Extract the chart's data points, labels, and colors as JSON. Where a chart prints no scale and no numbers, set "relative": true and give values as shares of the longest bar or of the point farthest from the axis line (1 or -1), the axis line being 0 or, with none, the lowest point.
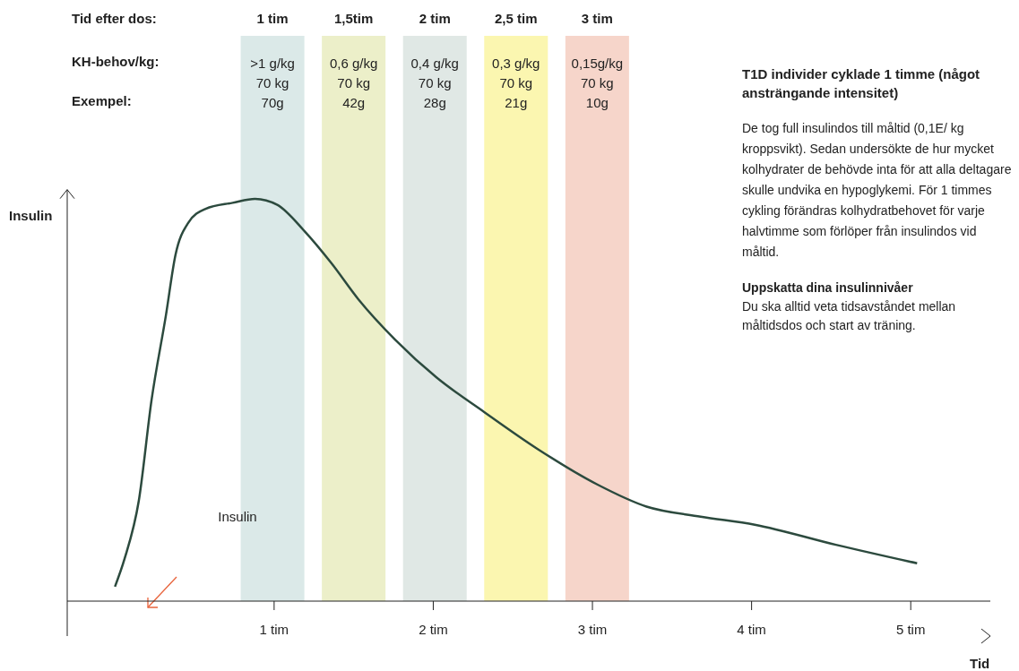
{
  "chart_data": {
    "type": "line",
    "relative": true,
    "title": "T1D individer cyklade 1 timme (något ansträngande intensitet)",
    "xlabel": "Tid",
    "ylabel": "Insulin",
    "x": [
      0,
      0.06,
      0.15,
      0.23,
      0.32,
      0.38,
      0.46,
      0.57,
      0.74,
      0.88,
      1.02,
      1.19,
      1.36,
      1.53,
      1.76,
      2.02,
      2.32,
      2.66,
      3.03,
      3.34,
      3.68,
      4.02,
      4.53,
      5.04
    ],
    "series": [
      {
        "color": "#2c4a3e",
        "values": [
          0.036,
          0.105,
          0.25,
          0.5,
          0.71,
          0.86,
          0.94,
          0.975,
          0.99,
          1,
          0.985,
          0.92,
          0.84,
          0.75,
          0.65,
          0.556,
          0.47,
          0.377,
          0.29,
          0.235,
          0.21,
          0.19,
          0.14,
          0.094
        ]
      }
    ],
    "xlim": [
      -0.3,
      5.5
    ],
    "xticks": [
      {
        "value": 1,
        "label": "1 tim"
      },
      {
        "value": 2,
        "label": "2 tim"
      },
      {
        "value": 3,
        "label": "3 tim"
      },
      {
        "value": 4,
        "label": "4 tim"
      },
      {
        "value": 5,
        "label": "5 tim"
      }
    ],
    "marker": "none",
    "line_style": "solid",
    "bands": [
      {
        "axis": "x",
        "from": 0.79,
        "to": 1.19,
        "color": "#dbe9e8",
        "label": "1 tim\n>1 g/kg\n70 kg\n70g"
      },
      {
        "axis": "x",
        "from": 1.3,
        "to": 1.7,
        "color": "#ecefc9",
        "label": "1,5tim\n0,6 g/kg\n70 kg\n42g"
      },
      {
        "axis": "x",
        "from": 1.81,
        "to": 2.21,
        "color": "#e0e8e5",
        "label": "2 tim\n0,4 g/kg\n70 kg\n28g"
      },
      {
        "axis": "x",
        "from": 2.32,
        "to": 2.72,
        "color": "#fbf6b0",
        "label": "2,5 tim\n0,3 g/kg\n70 kg\n21g"
      },
      {
        "axis": "x",
        "from": 2.83,
        "to": 3.23,
        "color": "#f6d5ca",
        "label": "3 tim\n0,15g/kg\n70 kg\n10g"
      }
    ],
    "annotations": [
      "Tid efter dos:",
      "KH-behov/kg:",
      "Exempel:",
      "De tog full insulindos till måltid (0,1E/ kg kroppsvikt). Sedan undersökte de hur mycket kolhydrater de behövde inta för att alla deltagare skulle undvika en hypoglykemi. För 1 timmes cykling förändras kolhydratbehovet för varje halvtimme som förlöper från insulindos vid måltid.",
      "Uppskatta dina insulinnivåer",
      "Du ska alltid veta tidsavståndet mellan måltidsdos och start av träning.",
      "Insulin"
    ]
  }
}
